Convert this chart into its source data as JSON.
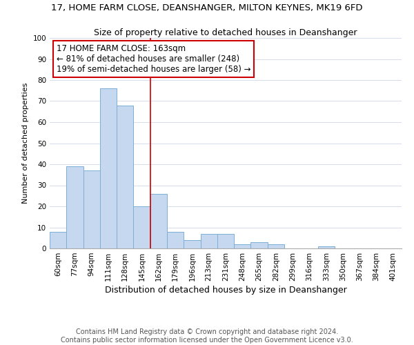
{
  "title": "17, HOME FARM CLOSE, DEANSHANGER, MILTON KEYNES, MK19 6FD",
  "subtitle": "Size of property relative to detached houses in Deanshanger",
  "xlabel": "Distribution of detached houses by size in Deanshanger",
  "ylabel": "Number of detached properties",
  "bar_labels": [
    "60sqm",
    "77sqm",
    "94sqm",
    "111sqm",
    "128sqm",
    "145sqm",
    "162sqm",
    "179sqm",
    "196sqm",
    "213sqm",
    "231sqm",
    "248sqm",
    "265sqm",
    "282sqm",
    "299sqm",
    "316sqm",
    "333sqm",
    "350sqm",
    "367sqm",
    "384sqm",
    "401sqm"
  ],
  "bar_values": [
    8,
    39,
    37,
    76,
    68,
    20,
    26,
    8,
    4,
    7,
    7,
    2,
    3,
    2,
    0,
    0,
    1,
    0,
    0,
    0,
    0
  ],
  "bar_color": "#c5d8f0",
  "bar_edge_color": "#7bafd4",
  "vline_x_idx": 6,
  "vline_color": "#cc0000",
  "annotation_title": "17 HOME FARM CLOSE: 163sqm",
  "annotation_line1": "← 81% of detached houses are smaller (248)",
  "annotation_line2": "19% of semi-detached houses are larger (58) →",
  "annotation_box_color": "#ffffff",
  "annotation_box_edge": "#cc0000",
  "ylim": [
    0,
    100
  ],
  "yticks": [
    0,
    10,
    20,
    30,
    40,
    50,
    60,
    70,
    80,
    90,
    100
  ],
  "footnote1": "Contains HM Land Registry data © Crown copyright and database right 2024.",
  "footnote2": "Contains public sector information licensed under the Open Government Licence v3.0.",
  "title_fontsize": 9.5,
  "subtitle_fontsize": 9,
  "xlabel_fontsize": 9,
  "ylabel_fontsize": 8,
  "tick_fontsize": 7.5,
  "annotation_fontsize": 8.5,
  "footnote_fontsize": 7
}
